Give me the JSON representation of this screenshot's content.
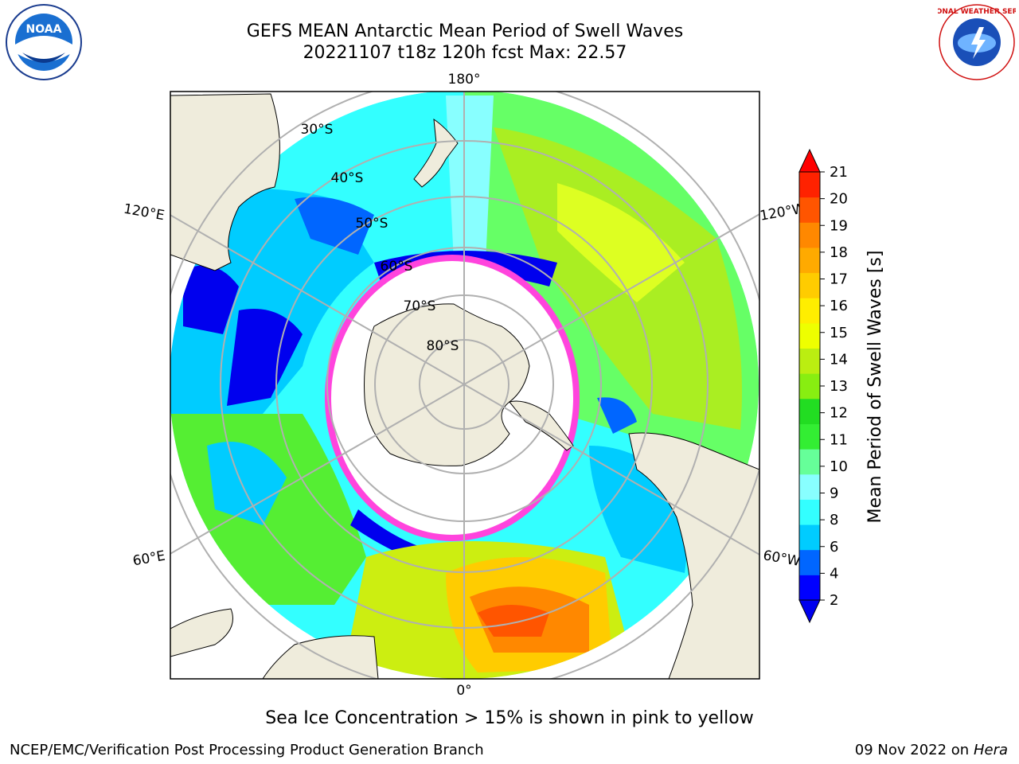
{
  "title": {
    "line1": "GEFS MEAN Antarctic Mean Period of Swell Waves",
    "line2": "20221107 t18z 120h fcst   Max: 22.57"
  },
  "map": {
    "projection": "south-polar-stereographic",
    "longitude_labels": [
      "180°",
      "120°E",
      "120°W",
      "60°E",
      "60°W",
      "0°"
    ],
    "latitude_labels": [
      "30°S",
      "40°S",
      "50°S",
      "60°S",
      "70°S",
      "80°S"
    ],
    "colors": {
      "land": "#efecdc",
      "sea_ice": "#ffffff",
      "ice_edge": "#ff44dd",
      "grid": "#b0b0b0"
    }
  },
  "colorbar": {
    "label": "Mean Period of Swell Waves [s]",
    "ticks": [
      "2",
      "4",
      "6",
      "8",
      "9",
      "10",
      "11",
      "12",
      "13",
      "14",
      "15",
      "16",
      "17",
      "18",
      "19",
      "20",
      "21"
    ],
    "colors": [
      "#0000ff",
      "#0066ff",
      "#00ccff",
      "#33ffff",
      "#88ffff",
      "#66ff99",
      "#33ee33",
      "#22dd22",
      "#88ee11",
      "#bbee11",
      "#eeff00",
      "#ffee00",
      "#ffcc00",
      "#ffaa00",
      "#ff8800",
      "#ff5500",
      "#ff2200"
    ],
    "under_color": "#0000ee",
    "over_color": "#ff0000"
  },
  "annotations": {
    "sea_ice_note": "Sea Ice Concentration > 15% is shown in pink to yellow"
  },
  "footer": {
    "left": "NCEP/EMC/Verification Post Processing Product Generation Branch",
    "right_date": "09 Nov 2022 on",
    "right_host": "Hera"
  },
  "logos": {
    "noaa_text": "NOAA",
    "nws_text": "NATIONAL WEATHER SERVICE"
  }
}
